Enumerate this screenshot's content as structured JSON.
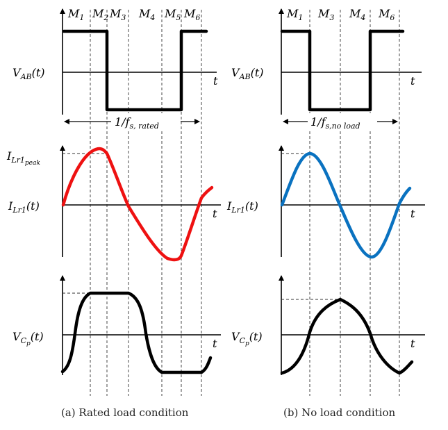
{
  "left": {
    "modes": [
      "M",
      "M",
      "M",
      "M",
      "M",
      "M"
    ],
    "mode_subs": [
      "1",
      "2",
      "3",
      "4",
      "5",
      "6"
    ],
    "vab_label": "V",
    "vab_sub": "AB",
    "arg": "(t)",
    "t": "t",
    "period_label": "1/f",
    "period_sub": "s, rated",
    "ilr_peak_label": "I",
    "ilr_peak_sub": "Lr1",
    "ilr_peak_subsub": "peak",
    "ilr_label": "I",
    "ilr_sub": "Lr1",
    "vcp_label": "V",
    "vcp_sub": "C",
    "vcp_subsub": "p",
    "caption": "(a) Rated load condition",
    "current_color": "#ee1111"
  },
  "right": {
    "modes": [
      "M",
      "M",
      "M",
      "M"
    ],
    "mode_subs": [
      "1",
      "3",
      "4",
      "6"
    ],
    "vab_label": "V",
    "vab_sub": "AB",
    "arg": "(t)",
    "t": "t",
    "period_label": "1/f",
    "period_sub": "s,no load",
    "ilr_label": "I",
    "ilr_sub": "Lr1",
    "vcp_label": "V",
    "vcp_sub": "C",
    "vcp_subsub": "p",
    "caption": "(b) No load condition",
    "current_color": "#0a72c0"
  }
}
